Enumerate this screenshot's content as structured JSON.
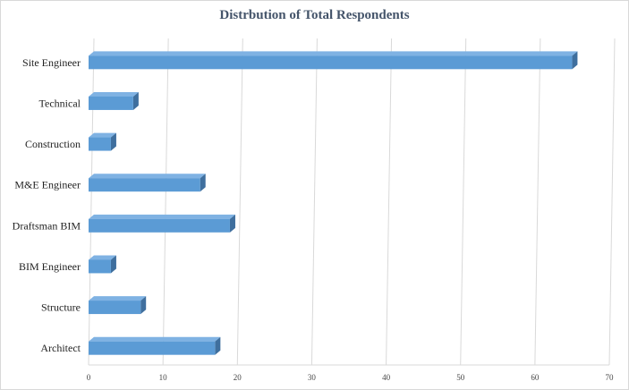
{
  "chart_data": {
    "type": "bar",
    "orientation": "horizontal",
    "title": "Distrbution of Total Respondents",
    "xlabel": "",
    "ylabel": "",
    "categories": [
      "Site Engineer",
      "Technical",
      "Construction",
      "M&E Engineer",
      "Draftsman BIM",
      "BIM Engineer",
      "Structure",
      "Architect"
    ],
    "values": [
      65,
      6,
      3,
      15,
      19,
      3,
      7,
      17
    ],
    "xlim": [
      0,
      70
    ],
    "xticks": [
      0,
      10,
      20,
      30,
      40,
      50,
      60,
      70
    ],
    "grid": "vertical",
    "legend": "none",
    "colors": {
      "bar_front": "#5b9bd5",
      "bar_top": "#7fb2e3",
      "bar_side": "#3f6f9e",
      "grid": "#d9d9d9"
    }
  }
}
